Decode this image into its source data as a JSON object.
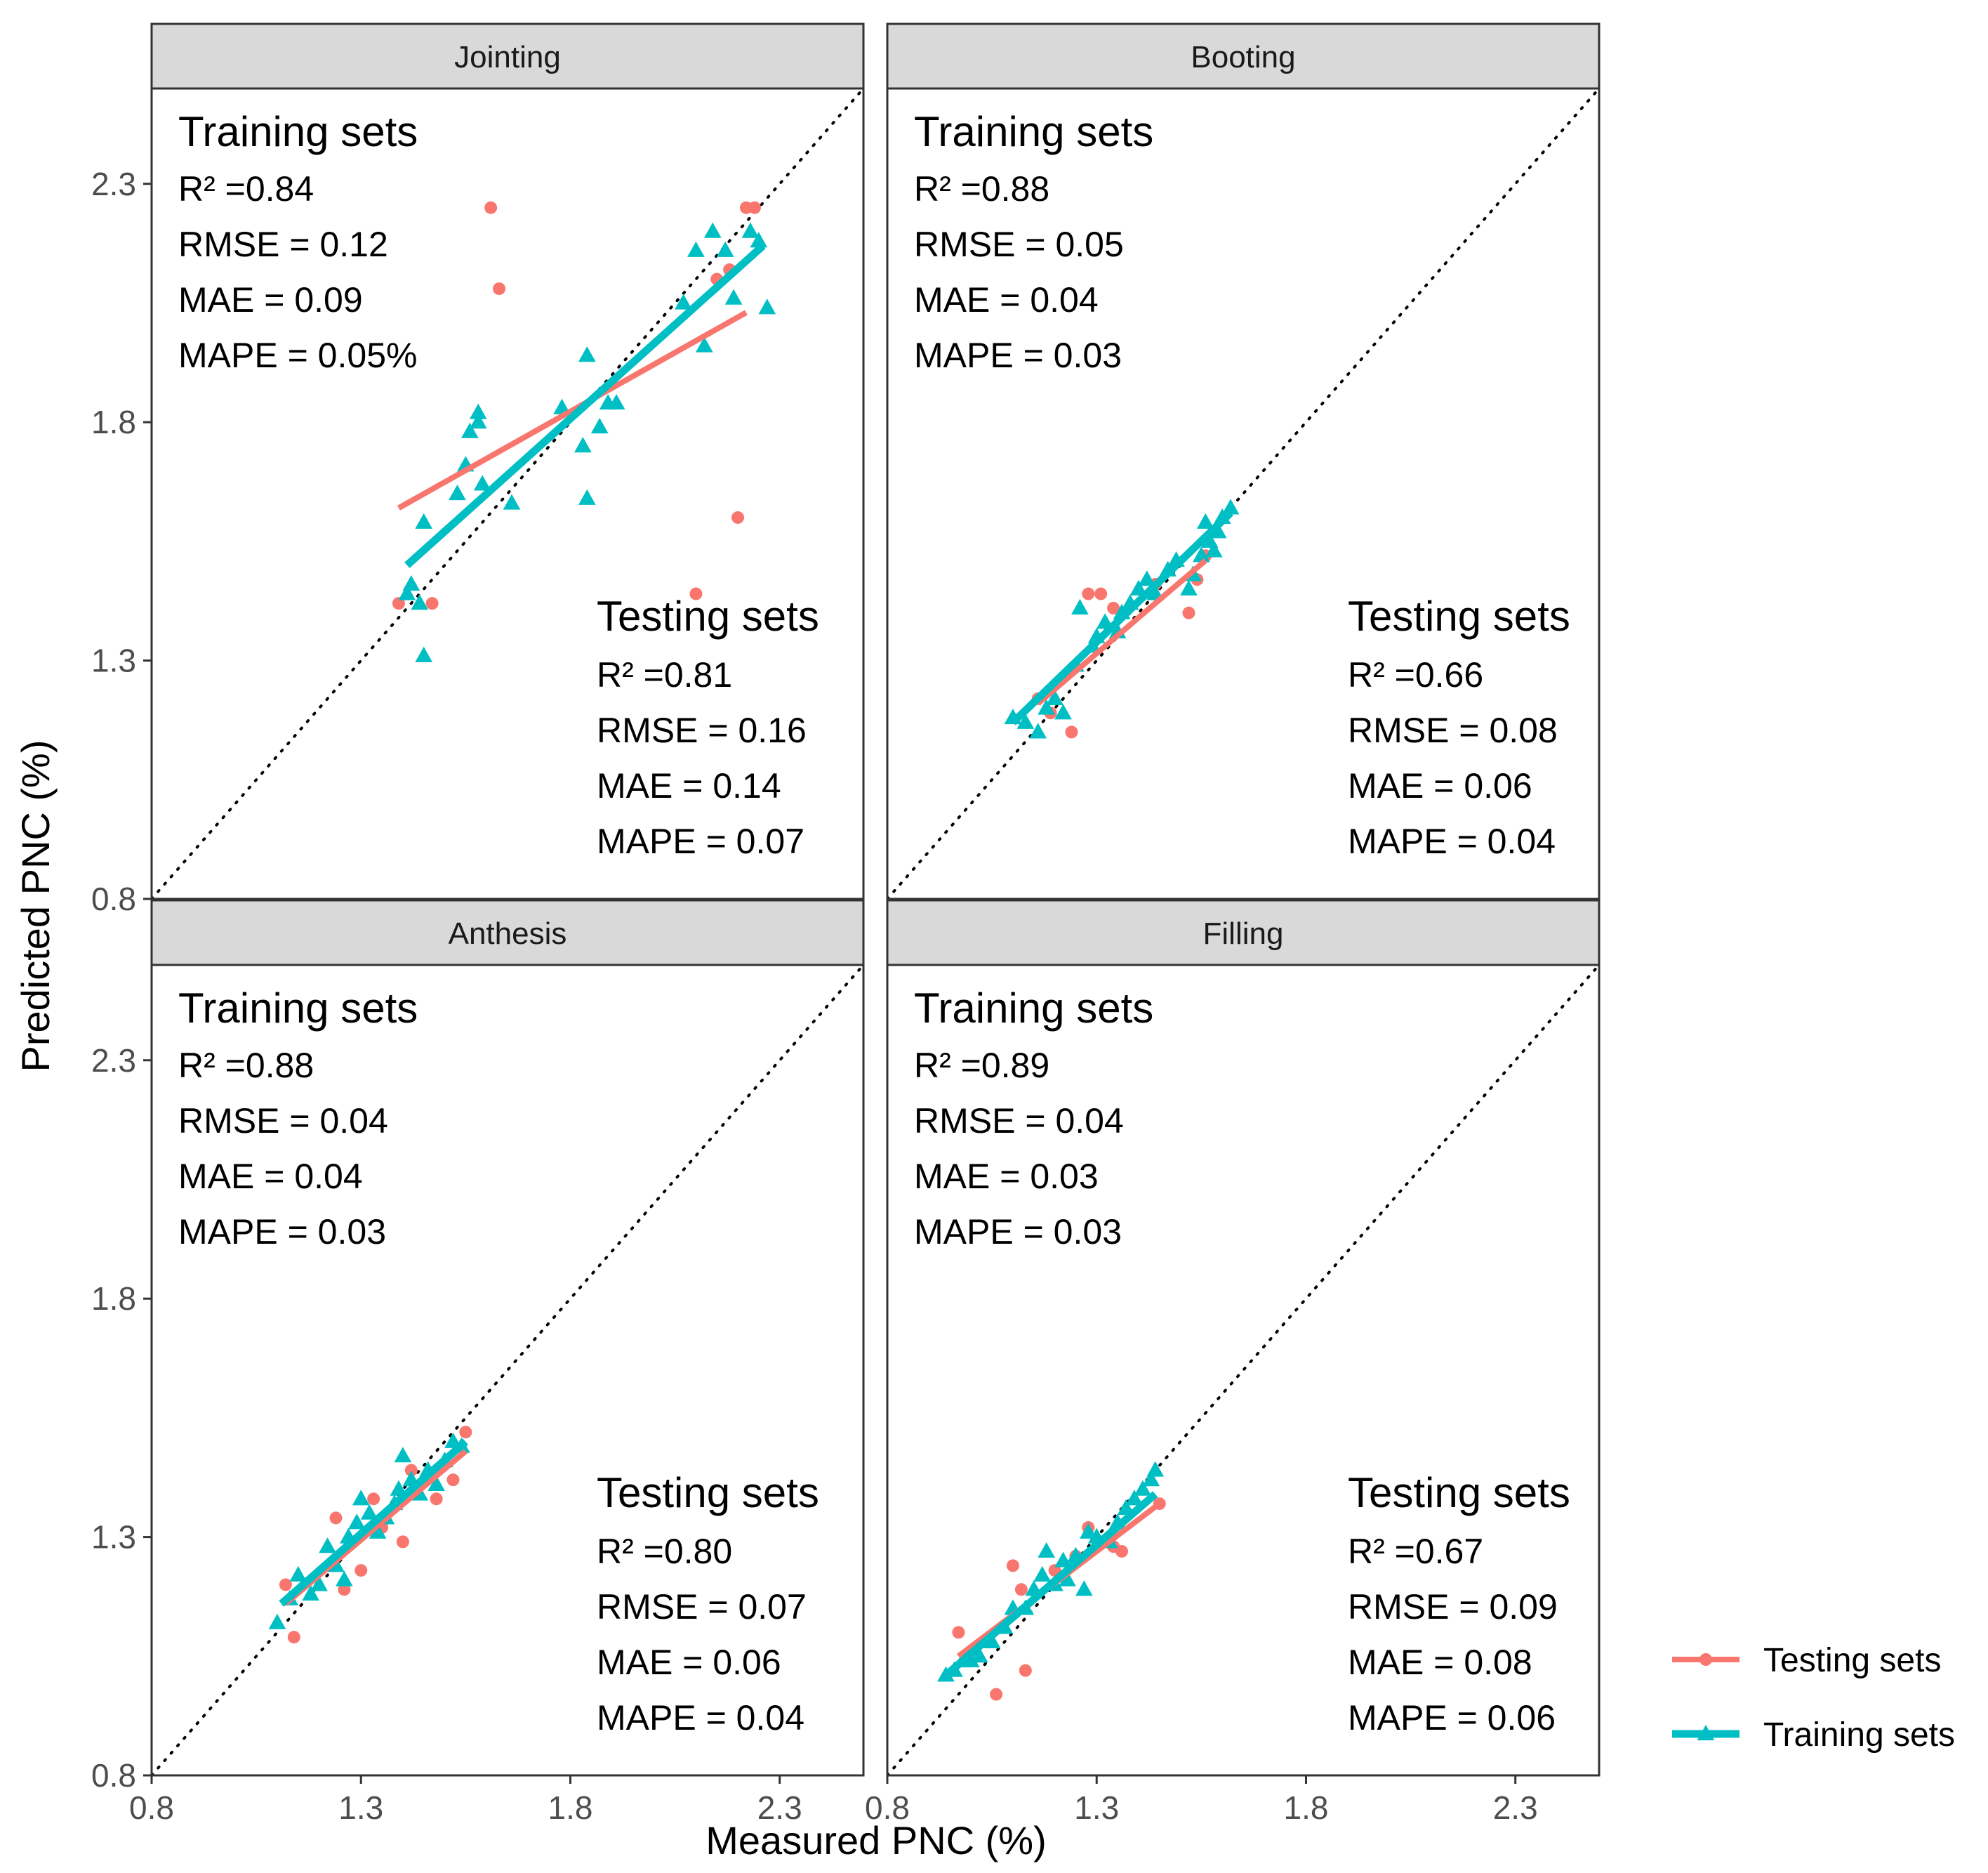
{
  "chart_data": {
    "type": "scatter",
    "xlabel": "Measured  PNC (%)",
    "ylabel": "Predicted  PNC (%)",
    "xlim": [
      0.8,
      2.5
    ],
    "ylim": [
      0.8,
      2.5
    ],
    "xticks": [
      "0.8",
      "1.3",
      "1.8",
      "2.3"
    ],
    "yticks": [
      "0.8",
      "1.3",
      "1.8",
      "2.3"
    ],
    "reference_line": "1:1 dotted",
    "grid": false,
    "legend": {
      "placement": "right",
      "entries": [
        {
          "name": "Testing sets",
          "color": "#F8766D",
          "marker": "circle"
        },
        {
          "name": "Training sets",
          "color": "#00BFC4",
          "marker": "triangle"
        }
      ]
    },
    "panels": [
      {
        "strip": "Jointing",
        "training_stats": {
          "heading": "Training sets",
          "lines": [
            "R² =0.84",
            "RMSE = 0.12",
            "MAE = 0.09",
            "MAPE = 0.05%"
          ]
        },
        "testing_stats": {
          "heading": "Testing sets",
          "lines": [
            "R² =0.81",
            "RMSE = 0.16",
            "MAE = 0.14",
            "MAPE = 0.07"
          ]
        },
        "series": [
          {
            "name": "Testing sets",
            "points": [
              [
                1.39,
                1.42
              ],
              [
                1.47,
                1.42
              ],
              [
                1.61,
                2.25
              ],
              [
                1.63,
                2.08
              ],
              [
                2.1,
                1.44
              ],
              [
                2.15,
                2.1
              ],
              [
                2.18,
                2.12
              ],
              [
                2.2,
                1.6
              ],
              [
                2.22,
                2.25
              ],
              [
                2.24,
                2.25
              ]
            ],
            "fit": [
              [
                1.39,
                1.62
              ],
              [
                2.22,
                2.03
              ]
            ]
          },
          {
            "name": "Training sets",
            "points": [
              [
                1.41,
                1.44
              ],
              [
                1.42,
                1.46
              ],
              [
                1.44,
                1.42
              ],
              [
                1.45,
                1.59
              ],
              [
                1.45,
                1.31
              ],
              [
                1.53,
                1.65
              ],
              [
                1.55,
                1.71
              ],
              [
                1.56,
                1.78
              ],
              [
                1.58,
                1.82
              ],
              [
                1.58,
                1.8
              ],
              [
                1.59,
                1.67
              ],
              [
                1.66,
                1.63
              ],
              [
                1.78,
                1.83
              ],
              [
                1.83,
                1.75
              ],
              [
                1.84,
                1.64
              ],
              [
                1.84,
                1.94
              ],
              [
                1.87,
                1.79
              ],
              [
                1.89,
                1.84
              ],
              [
                1.91,
                1.84
              ],
              [
                2.07,
                2.05
              ],
              [
                2.1,
                2.16
              ],
              [
                2.12,
                1.96
              ],
              [
                2.14,
                2.2
              ],
              [
                2.17,
                2.16
              ],
              [
                2.19,
                2.06
              ],
              [
                2.23,
                2.2
              ],
              [
                2.25,
                2.18
              ],
              [
                2.27,
                2.04
              ]
            ],
            "fit": [
              [
                1.41,
                1.5
              ],
              [
                2.26,
                2.17
              ]
            ]
          }
        ]
      },
      {
        "strip": "Booting",
        "training_stats": {
          "heading": "Training sets",
          "lines": [
            "R² =0.88",
            "RMSE = 0.05",
            "MAE = 0.04",
            "MAPE = 0.03"
          ]
        },
        "testing_stats": {
          "heading": "Testing sets",
          "lines": [
            "R² =0.66",
            "RMSE = 0.08",
            "MAE = 0.06",
            "MAPE = 0.04"
          ]
        },
        "series": [
          {
            "name": "Testing sets",
            "points": [
              [
                1.16,
                1.22
              ],
              [
                1.19,
                1.19
              ],
              [
                1.24,
                1.15
              ],
              [
                1.28,
                1.44
              ],
              [
                1.31,
                1.44
              ],
              [
                1.34,
                1.41
              ],
              [
                1.44,
                1.46
              ],
              [
                1.52,
                1.4
              ],
              [
                1.54,
                1.47
              ],
              [
                1.56,
                1.52
              ]
            ],
            "fit": [
              [
                1.16,
                1.21
              ],
              [
                1.56,
                1.51
              ]
            ]
          },
          {
            "name": "Training sets",
            "points": [
              [
                1.1,
                1.18
              ],
              [
                1.13,
                1.17
              ],
              [
                1.16,
                1.15
              ],
              [
                1.18,
                1.2
              ],
              [
                1.2,
                1.22
              ],
              [
                1.22,
                1.19
              ],
              [
                1.25,
                1.29
              ],
              [
                1.26,
                1.41
              ],
              [
                1.29,
                1.33
              ],
              [
                1.3,
                1.35
              ],
              [
                1.32,
                1.38
              ],
              [
                1.35,
                1.36
              ],
              [
                1.36,
                1.4
              ],
              [
                1.38,
                1.42
              ],
              [
                1.4,
                1.45
              ],
              [
                1.42,
                1.47
              ],
              [
                1.44,
                1.44
              ],
              [
                1.47,
                1.49
              ],
              [
                1.49,
                1.51
              ],
              [
                1.52,
                1.45
              ],
              [
                1.53,
                1.48
              ],
              [
                1.55,
                1.52
              ],
              [
                1.56,
                1.59
              ],
              [
                1.57,
                1.55
              ],
              [
                1.58,
                1.53
              ],
              [
                1.59,
                1.57
              ],
              [
                1.6,
                1.6
              ],
              [
                1.62,
                1.62
              ]
            ],
            "fit": [
              [
                1.1,
                1.17
              ],
              [
                1.62,
                1.61
              ]
            ]
          }
        ]
      },
      {
        "strip": "Anthesis",
        "training_stats": {
          "heading": "Training sets",
          "lines": [
            "R² =0.88",
            "RMSE = 0.04",
            "MAE = 0.04",
            "MAPE = 0.03"
          ]
        },
        "testing_stats": {
          "heading": "Testing sets",
          "lines": [
            "R² =0.80",
            "RMSE = 0.07",
            "MAE = 0.06",
            "MAPE = 0.04"
          ]
        },
        "series": [
          {
            "name": "Testing sets",
            "points": [
              [
                1.12,
                1.2
              ],
              [
                1.14,
                1.09
              ],
              [
                1.24,
                1.34
              ],
              [
                1.26,
                1.19
              ],
              [
                1.3,
                1.23
              ],
              [
                1.33,
                1.38
              ],
              [
                1.35,
                1.32
              ],
              [
                1.4,
                1.29
              ],
              [
                1.42,
                1.44
              ],
              [
                1.48,
                1.38
              ],
              [
                1.52,
                1.42
              ],
              [
                1.55,
                1.52
              ]
            ],
            "fit": [
              [
                1.12,
                1.16
              ],
              [
                1.55,
                1.48
              ]
            ]
          },
          {
            "name": "Training sets",
            "points": [
              [
                1.1,
                1.12
              ],
              [
                1.13,
                1.17
              ],
              [
                1.15,
                1.22
              ],
              [
                1.18,
                1.18
              ],
              [
                1.2,
                1.2
              ],
              [
                1.22,
                1.28
              ],
              [
                1.24,
                1.24
              ],
              [
                1.26,
                1.21
              ],
              [
                1.27,
                1.3
              ],
              [
                1.29,
                1.33
              ],
              [
                1.3,
                1.38
              ],
              [
                1.32,
                1.35
              ],
              [
                1.34,
                1.31
              ],
              [
                1.36,
                1.34
              ],
              [
                1.38,
                1.37
              ],
              [
                1.39,
                1.4
              ],
              [
                1.4,
                1.47
              ],
              [
                1.42,
                1.42
              ],
              [
                1.44,
                1.39
              ],
              [
                1.46,
                1.44
              ],
              [
                1.48,
                1.41
              ],
              [
                1.5,
                1.46
              ],
              [
                1.52,
                1.5
              ],
              [
                1.54,
                1.49
              ]
            ],
            "fit": [
              [
                1.11,
                1.16
              ],
              [
                1.55,
                1.5
              ]
            ]
          }
        ]
      },
      {
        "strip": "Filling",
        "training_stats": {
          "heading": "Training sets",
          "lines": [
            "R² =0.89",
            "RMSE = 0.04",
            "MAE = 0.03",
            "MAPE = 0.03"
          ]
        },
        "testing_stats": {
          "heading": "Testing sets",
          "lines": [
            "R² =0.67",
            "RMSE = 0.09",
            "MAE = 0.08",
            "MAPE = 0.06"
          ]
        },
        "series": [
          {
            "name": "Testing sets",
            "points": [
              [
                0.97,
                1.1
              ],
              [
                1.06,
                0.97
              ],
              [
                1.1,
                1.24
              ],
              [
                1.12,
                1.19
              ],
              [
                1.13,
                1.02
              ],
              [
                1.2,
                1.23
              ],
              [
                1.25,
                1.26
              ],
              [
                1.28,
                1.32
              ],
              [
                1.34,
                1.28
              ],
              [
                1.36,
                1.27
              ],
              [
                1.45,
                1.37
              ]
            ],
            "fit": [
              [
                0.97,
                1.05
              ],
              [
                1.45,
                1.37
              ]
            ]
          },
          {
            "name": "Training sets",
            "points": [
              [
                0.94,
                1.01
              ],
              [
                0.96,
                1.02
              ],
              [
                0.98,
                1.04
              ],
              [
                1.0,
                1.04
              ],
              [
                1.02,
                1.05
              ],
              [
                1.05,
                1.08
              ],
              [
                1.08,
                1.11
              ],
              [
                1.1,
                1.15
              ],
              [
                1.13,
                1.15
              ],
              [
                1.15,
                1.19
              ],
              [
                1.17,
                1.22
              ],
              [
                1.18,
                1.27
              ],
              [
                1.2,
                1.2
              ],
              [
                1.22,
                1.25
              ],
              [
                1.23,
                1.21
              ],
              [
                1.25,
                1.26
              ],
              [
                1.27,
                1.19
              ],
              [
                1.28,
                1.31
              ],
              [
                1.3,
                1.3
              ],
              [
                1.33,
                1.29
              ],
              [
                1.35,
                1.33
              ],
              [
                1.37,
                1.36
              ],
              [
                1.39,
                1.38
              ],
              [
                1.41,
                1.4
              ],
              [
                1.43,
                1.42
              ],
              [
                1.44,
                1.44
              ]
            ],
            "fit": [
              [
                0.94,
                1.01
              ],
              [
                1.44,
                1.39
              ]
            ]
          }
        ]
      }
    ]
  }
}
